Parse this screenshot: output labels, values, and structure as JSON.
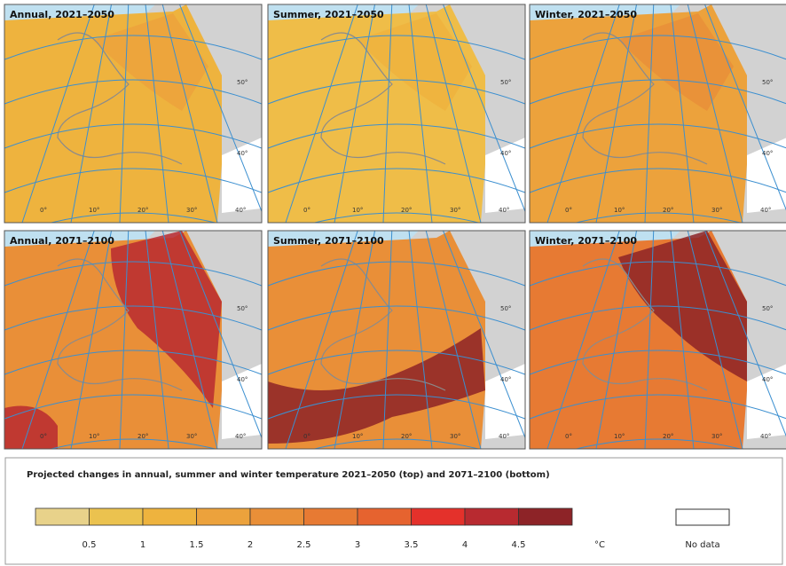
{
  "panels": [
    {
      "title": "Annual, 2021–2050",
      "fill": "#eeb33e",
      "hot": "#eca23c"
    },
    {
      "title": "Summer, 2021–2050",
      "fill": "#efbd48",
      "hot": "#eeb33e"
    },
    {
      "title": "Winter, 2021–2050",
      "fill": "#eca23c",
      "hot": "#e98f38"
    },
    {
      "title": "Annual, 2071–2100",
      "fill": "#e98f38",
      "hot": "#b82a30"
    },
    {
      "title": "Summer, 2071–2100",
      "fill": "#e98f38",
      "hot": "#8d2327"
    },
    {
      "title": "Winter, 2071–2100",
      "fill": "#e77a33",
      "hot": "#8d2327"
    }
  ],
  "graticule": {
    "lat": [
      "50°",
      "40°"
    ],
    "lon": [
      "0°",
      "10°",
      "20°",
      "30°",
      "40°"
    ]
  },
  "legend": {
    "title": "Projected changes in annual, summer and winter temperature 2021–2050 (top) and 2071–2100 (bottom)",
    "colors": [
      "#e8d28a",
      "#ebc24f",
      "#eeb33e",
      "#eca23c",
      "#e98f38",
      "#e77a33",
      "#e6632f",
      "#e4312b",
      "#b82a30",
      "#8d2327"
    ],
    "ticks": [
      0.5,
      1,
      1.5,
      2,
      2.5,
      3,
      3.5,
      4,
      4.5
    ],
    "unit": "°C",
    "no_data": "No data"
  }
}
